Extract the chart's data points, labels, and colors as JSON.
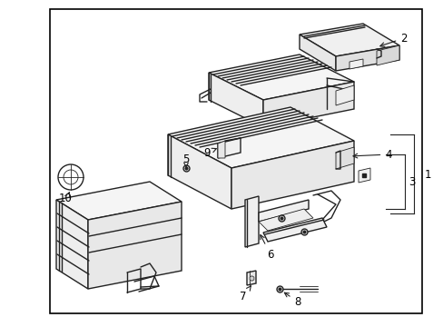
{
  "background_color": "#ffffff",
  "border_color": "#000000",
  "line_color": "#222222",
  "label_color": "#000000",
  "fig_width": 4.89,
  "fig_height": 3.6,
  "dpi": 100,
  "label_fontsize": 8.5
}
